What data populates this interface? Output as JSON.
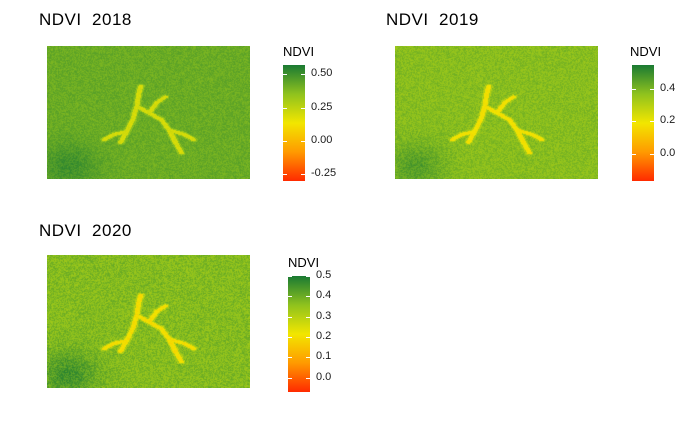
{
  "colors": {
    "low": "#ff2a00",
    "mid_low": "#ff9a00",
    "mid": "#f2e600",
    "mid_high": "#8fc21e",
    "high": "#1a7a33"
  },
  "chart_data": [
    {
      "type": "heatmap",
      "title": "NDVI  2018",
      "legend_title": "NDVI",
      "legend_position": "right",
      "value_range": [
        -0.3,
        0.57
      ],
      "legend_ticks": [
        "0.50",
        "0.25",
        "0.00",
        "-0.25"
      ],
      "legend_tick_values": [
        0.5,
        0.25,
        0.0,
        -0.25
      ],
      "typical_value": 0.42,
      "low_feature_value": 0.2
    },
    {
      "type": "heatmap",
      "title": "NDVI  2019",
      "legend_title": "NDVI",
      "legend_position": "right",
      "value_range": [
        -0.17,
        0.55
      ],
      "legend_ticks": [
        "0.4",
        "0.2",
        "0.0"
      ],
      "legend_tick_values": [
        0.4,
        0.2,
        0.0
      ],
      "typical_value": 0.38,
      "low_feature_value": 0.18
    },
    {
      "type": "heatmap",
      "title": "NDVI  2020",
      "legend_title": "NDVI",
      "legend_position": "right",
      "value_range": [
        -0.07,
        0.5
      ],
      "legend_ticks": [
        "0.5",
        "0.4",
        "0.3",
        "0.2",
        "0.1",
        "0.0"
      ],
      "legend_tick_values": [
        0.5,
        0.4,
        0.3,
        0.2,
        0.1,
        0.0
      ],
      "typical_value": 0.37,
      "low_feature_value": 0.2
    }
  ]
}
